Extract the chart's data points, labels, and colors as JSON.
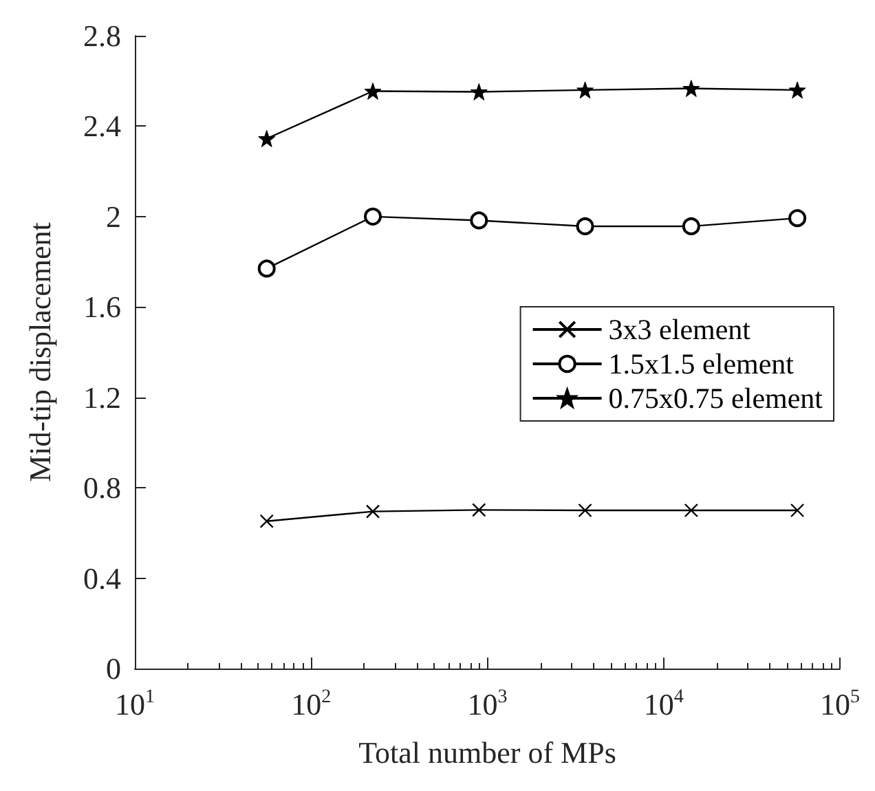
{
  "chart_data": {
    "type": "line",
    "xlabel": "Total number of MPs",
    "ylabel": "Mid-tip displacement",
    "x": [
      56,
      224,
      896,
      3584,
      14336,
      57344
    ],
    "series": [
      {
        "name": "3x3 element",
        "color": "#000000",
        "marker": "cross",
        "values": [
          0.652,
          0.695,
          0.702,
          0.7,
          0.7,
          0.7
        ]
      },
      {
        "name": "1.5x1.5 element",
        "color": "#000000",
        "marker": "circle",
        "values": [
          1.77,
          2.0,
          1.983,
          1.957,
          1.957,
          1.993
        ]
      },
      {
        "name": "0.75x0.75 element",
        "color": "#000000",
        "marker": "star",
        "values": [
          2.345,
          2.555,
          2.552,
          2.56,
          2.567,
          2.56
        ]
      }
    ],
    "log": "x",
    "xlim": [
      10,
      100000
    ],
    "xticks": [
      {
        "value": 10,
        "label": "10$^{1}$"
      },
      {
        "value": 100,
        "label": "10$^{2}$"
      },
      {
        "value": 1000,
        "label": "10$^{3}$"
      },
      {
        "value": 10000,
        "label": "10$^{4}$"
      },
      {
        "value": 100000,
        "label": "10$^{5}$"
      }
    ],
    "ylim": [
      0,
      2.8
    ],
    "yticks": [
      0,
      0.4,
      0.8,
      1.2,
      1.6,
      2,
      2.4,
      2.8
    ],
    "grid": false,
    "legend": "right",
    "line_style": "solid"
  }
}
